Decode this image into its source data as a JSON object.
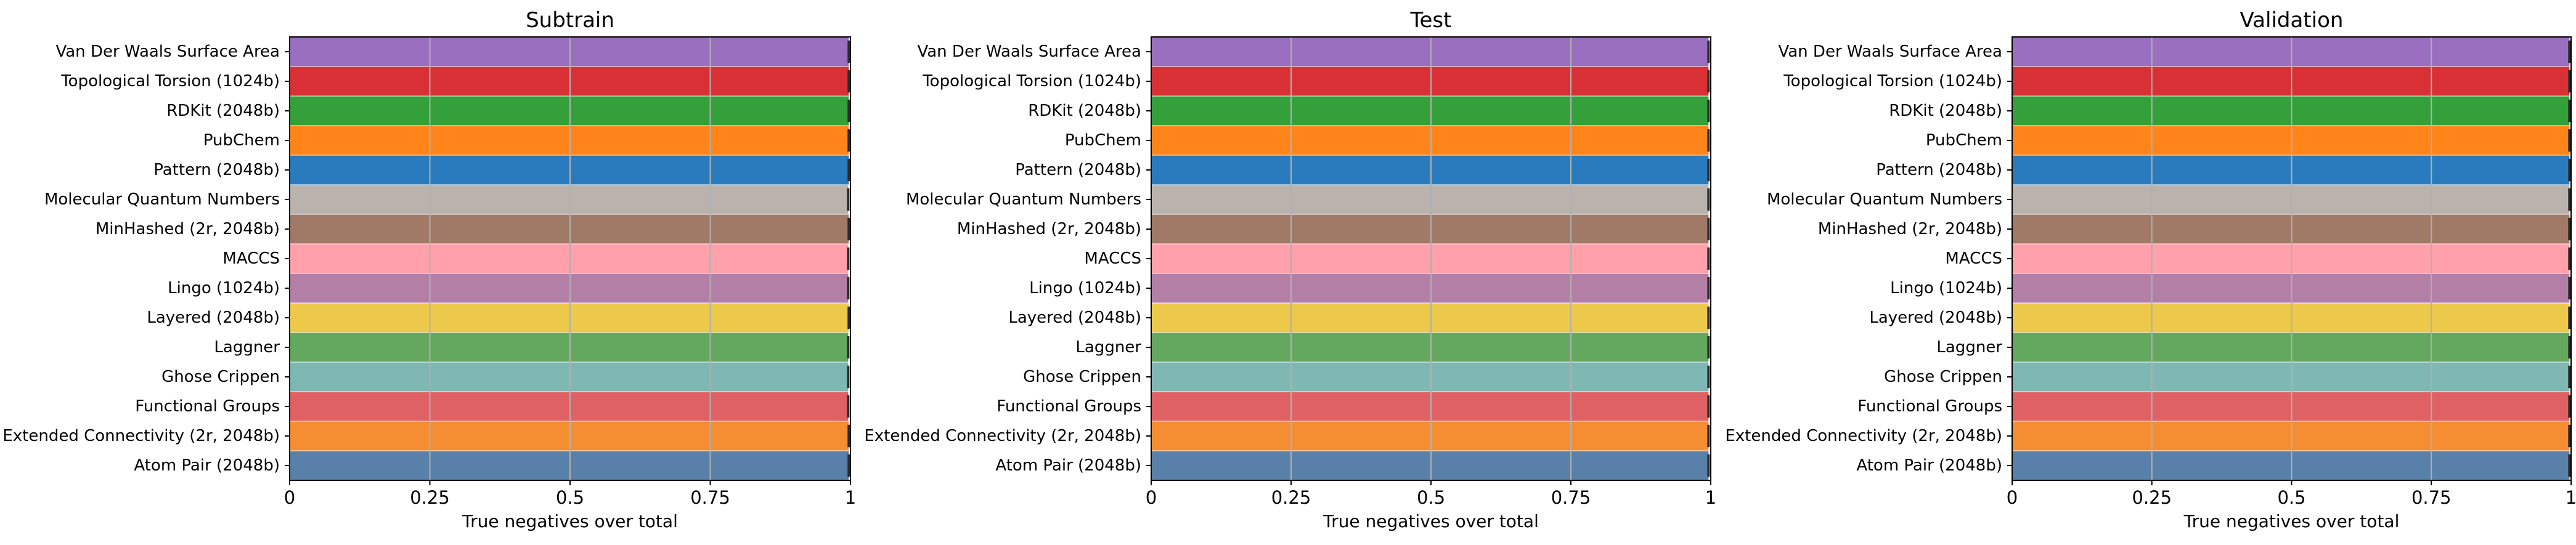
{
  "figure": {
    "xlabel": "True negatives over total"
  },
  "chart_data": [
    {
      "type": "bar",
      "orientation": "horizontal",
      "title": "Subtrain",
      "xlabel": "True negatives over total",
      "xlim": [
        0,
        1
      ],
      "xticks": [
        0,
        0.25,
        0.5,
        0.75,
        1
      ],
      "xtick_labels": [
        "0",
        "0.25",
        "0.5",
        "0.75",
        "1"
      ],
      "grid": "x",
      "categories": [
        "Van Der Waals Surface Area",
        "Topological Torsion (1024b)",
        "RDKit (2048b)",
        "PubChem",
        "Pattern (2048b)",
        "Molecular Quantum Numbers",
        "MinHashed (2r, 2048b)",
        "MACCS",
        "Lingo (1024b)",
        "Layered (2048b)",
        "Laggner",
        "Ghose Crippen",
        "Functional Groups",
        "Extended Connectivity (2r, 2048b)",
        "Atom Pair (2048b)"
      ],
      "values": [
        0.997,
        0.997,
        0.997,
        0.997,
        0.997,
        0.996,
        0.997,
        0.996,
        0.996,
        0.997,
        0.996,
        0.996,
        0.996,
        0.997,
        0.997
      ],
      "colors": [
        "#9b6fc0",
        "#d93035",
        "#33a03a",
        "#ff851b",
        "#2a7bbd",
        "#bab3ad",
        "#a07a67",
        "#ffa0ab",
        "#b47fa6",
        "#edc94b",
        "#63a85e",
        "#7fb8b3",
        "#e06163",
        "#f58e33",
        "#5880a9"
      ]
    },
    {
      "type": "bar",
      "orientation": "horizontal",
      "title": "Test",
      "xlabel": "True negatives over total",
      "xlim": [
        0,
        1
      ],
      "xticks": [
        0,
        0.25,
        0.5,
        0.75,
        1
      ],
      "xtick_labels": [
        "0",
        "0.25",
        "0.5",
        "0.75",
        "1"
      ],
      "grid": "x",
      "categories": [
        "Van Der Waals Surface Area",
        "Topological Torsion (1024b)",
        "RDKit (2048b)",
        "PubChem",
        "Pattern (2048b)",
        "Molecular Quantum Numbers",
        "MinHashed (2r, 2048b)",
        "MACCS",
        "Lingo (1024b)",
        "Layered (2048b)",
        "Laggner",
        "Ghose Crippen",
        "Functional Groups",
        "Extended Connectivity (2r, 2048b)",
        "Atom Pair (2048b)"
      ],
      "values": [
        0.996,
        0.996,
        0.996,
        0.996,
        0.996,
        0.996,
        0.996,
        0.996,
        0.996,
        0.996,
        0.996,
        0.996,
        0.996,
        0.996,
        0.996
      ],
      "colors": [
        "#9b6fc0",
        "#d93035",
        "#33a03a",
        "#ff851b",
        "#2a7bbd",
        "#bab3ad",
        "#a07a67",
        "#ffa0ab",
        "#b47fa6",
        "#edc94b",
        "#63a85e",
        "#7fb8b3",
        "#e06163",
        "#f58e33",
        "#5880a9"
      ]
    },
    {
      "type": "bar",
      "orientation": "horizontal",
      "title": "Validation",
      "xlabel": "True negatives over total",
      "xlim": [
        0,
        1
      ],
      "xticks": [
        0,
        0.25,
        0.5,
        0.75,
        1
      ],
      "xtick_labels": [
        "0",
        "0.25",
        "0.5",
        "0.75",
        "1"
      ],
      "grid": "x",
      "categories": [
        "Van Der Waals Surface Area",
        "Topological Torsion (1024b)",
        "RDKit (2048b)",
        "PubChem",
        "Pattern (2048b)",
        "Molecular Quantum Numbers",
        "MinHashed (2r, 2048b)",
        "MACCS",
        "Lingo (1024b)",
        "Layered (2048b)",
        "Laggner",
        "Ghose Crippen",
        "Functional Groups",
        "Extended Connectivity (2r, 2048b)",
        "Atom Pair (2048b)"
      ],
      "values": [
        0.997,
        0.997,
        0.997,
        0.997,
        0.997,
        0.997,
        0.997,
        0.997,
        0.997,
        0.997,
        0.997,
        0.997,
        0.997,
        0.997,
        0.997
      ],
      "colors": [
        "#9b6fc0",
        "#d93035",
        "#33a03a",
        "#ff851b",
        "#2a7bbd",
        "#bab3ad",
        "#a07a67",
        "#ffa0ab",
        "#b47fa6",
        "#edc94b",
        "#63a85e",
        "#7fb8b3",
        "#e06163",
        "#f58e33",
        "#5880a9"
      ]
    }
  ]
}
